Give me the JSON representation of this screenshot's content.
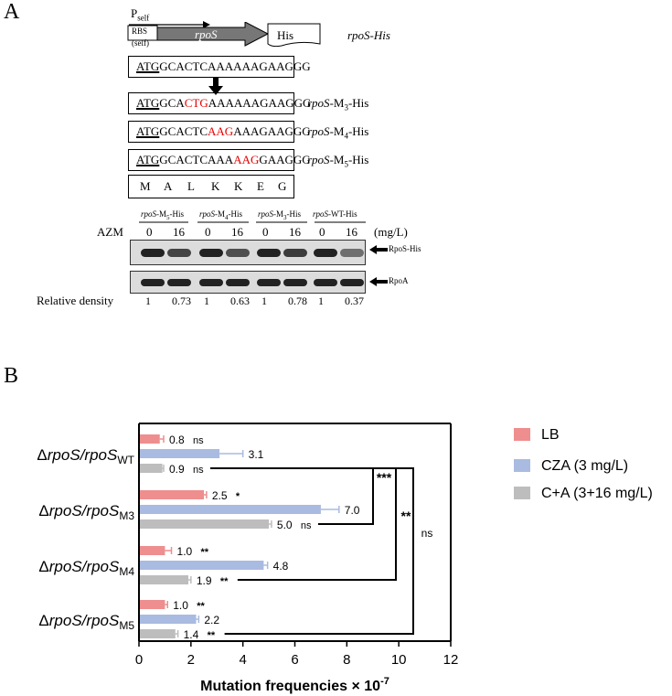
{
  "panel_a": {
    "letter": "A",
    "promoter_label": "P",
    "promoter_sub": "self",
    "rbs_label": "RBS",
    "rbs_sub": "(self)",
    "gene_label": "rpoS",
    "tag_label": "His",
    "construct_label": "rpoS-His",
    "sequences": [
      {
        "start": "ATG",
        "pre": "GCACTCAAAAAAGAAGGG",
        "mut": "",
        "post": "",
        "label_gene": "",
        "label_sub": "",
        "label_end": ""
      },
      {
        "start": "ATG",
        "pre": "GCA",
        "mut": "CTG",
        "post": "AAAAAAGAAGGG",
        "label_gene": "rpoS",
        "label_mid": "-M",
        "label_sub": "3",
        "label_end": "-His"
      },
      {
        "start": "ATG",
        "pre": "GCACTC",
        "mut": "AAG",
        "post": "AAAGAAGGG",
        "label_gene": "rpoS",
        "label_mid": "-M",
        "label_sub": "4",
        "label_end": "-His"
      },
      {
        "start": "ATG",
        "pre": "GCACTCAAA",
        "mut": "AAG",
        "post": "GAAGGG",
        "label_gene": "rpoS",
        "label_mid": "-M",
        "label_sub": "5",
        "label_end": "-His"
      }
    ],
    "amino_acids": [
      "M",
      "A",
      "L",
      "K",
      "K",
      "E",
      "G"
    ],
    "lanes": [
      {
        "gene": "rpoS",
        "mid": "-M",
        "sub": "5",
        "end": "-His"
      },
      {
        "gene": "rpoS",
        "mid": "-M",
        "sub": "4",
        "end": "-His"
      },
      {
        "gene": "rpoS",
        "mid": "-M",
        "sub": "3",
        "end": "-His"
      },
      {
        "gene": "rpoS",
        "mid": "-WT-His",
        "sub": "",
        "end": ""
      }
    ],
    "azm_label": "AZM",
    "azm_doses": [
      "0",
      "16",
      "0",
      "16",
      "0",
      "16",
      "0",
      "16"
    ],
    "unit_label": "(mg/L)",
    "blot1_label": "RpoS-His",
    "blot2_label": "RpoA",
    "density_label": "Relative density",
    "densities": [
      "1",
      "0.73",
      "1",
      "0.63",
      "1",
      "0.78",
      "1",
      "0.37"
    ],
    "band_intensity_blot1": [
      1,
      0.73,
      1,
      0.63,
      1,
      0.78,
      1,
      0.37
    ]
  },
  "panel_b": {
    "letter": "B",
    "chart_data": {
      "type": "bar",
      "orientation": "horizontal",
      "title": "",
      "xlabel": "Mutation frequencies × 10",
      "xlabel_exp": "-7",
      "ylabel": "",
      "xlim": [
        0,
        12
      ],
      "xticks": [
        "0",
        "2",
        "4",
        "6",
        "8",
        "10",
        "12"
      ],
      "categories": [
        {
          "prefix": "Δ",
          "gene1": "rpoS",
          "sep": "/",
          "gene2": "rpoS",
          "sub": "WT"
        },
        {
          "prefix": "Δ",
          "gene1": "rpoS",
          "sep": "/",
          "gene2": "rpoS",
          "sub": "M3"
        },
        {
          "prefix": "Δ",
          "gene1": "rpoS",
          "sep": "/",
          "gene2": "rpoS",
          "sub": "M4"
        },
        {
          "prefix": "Δ",
          "gene1": "rpoS",
          "sep": "/",
          "gene2": "rpoS",
          "sub": "M5"
        }
      ],
      "series": [
        {
          "name": "LB",
          "color": "#ee8e8e",
          "values": [
            0.8,
            2.5,
            1.0,
            1.0
          ],
          "errors": [
            0.15,
            0.1,
            0.25,
            0.1
          ],
          "labels": [
            "0.8",
            "2.5",
            "1.0",
            "1.0"
          ],
          "sig": [
            "ns",
            "*",
            "**",
            "**"
          ]
        },
        {
          "name": "CZA (3 mg/L)",
          "color": "#a9bbe0",
          "values": [
            3.1,
            7.0,
            4.8,
            2.2
          ],
          "errors": [
            0.9,
            0.7,
            0.15,
            0.1
          ],
          "labels": [
            "3.1",
            "7.0",
            "4.8",
            "2.2"
          ],
          "sig": [
            "",
            "",
            "",
            ""
          ]
        },
        {
          "name": "C+A (3+16 mg/L)",
          "color": "#bdbdbd",
          "values": [
            0.9,
            5.0,
            1.9,
            1.4
          ],
          "errors": [
            0.05,
            0.1,
            0.1,
            0.1
          ],
          "labels": [
            "0.9",
            "5.0",
            "1.9",
            "1.4"
          ],
          "sig": [
            "ns",
            "ns",
            "**",
            "**"
          ]
        }
      ],
      "comparisons": [
        {
          "label": "***",
          "from_category": 1,
          "to_category": 0
        },
        {
          "label": "**",
          "from_category": 2,
          "to_category": 0
        },
        {
          "label": "ns",
          "from_category": 3,
          "to_category": 0
        }
      ],
      "legend_position": "right"
    }
  }
}
